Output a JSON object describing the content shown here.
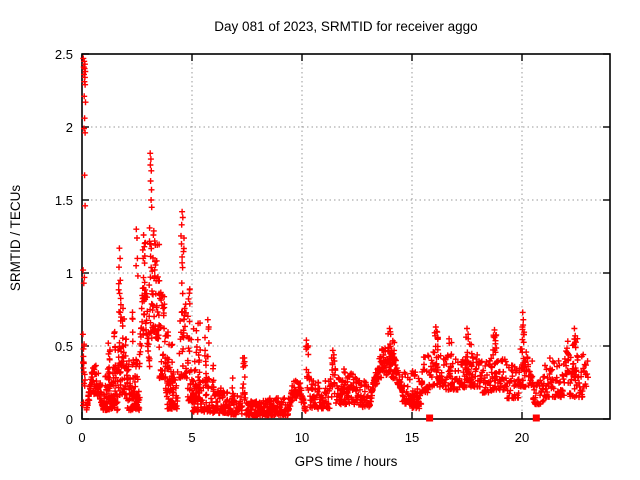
{
  "chart_data": {
    "type": "scatter",
    "title": "Day 081 of 2023, SRMTID for receiver aggo",
    "xlabel": "GPS time / hours",
    "ylabel": "SRMTID / TECUs",
    "xlim": [
      0,
      24
    ],
    "ylim": [
      0,
      2.5
    ],
    "xticks": [
      0,
      5,
      10,
      15,
      20
    ],
    "xtick_labels": [
      "0",
      "5",
      "10",
      "15",
      "20"
    ],
    "yticks": [
      0,
      0.5,
      1,
      1.5,
      2,
      2.5
    ],
    "ytick_labels": [
      "0",
      "0.5",
      "1",
      "1.5",
      "2",
      "2.5"
    ],
    "grid": "dotted",
    "legend": "none",
    "marker": "plus",
    "colors": {
      "points": "#ff0000",
      "axis": "#000000",
      "grid": "#9a9a9a",
      "background": "#ffffff"
    },
    "axis_squares_x": [
      15.8,
      20.65
    ],
    "notable_points": [
      [
        0.06,
        2.47
      ],
      [
        0.1,
        2.45
      ],
      [
        0.13,
        2.43
      ],
      [
        0.08,
        2.41
      ],
      [
        0.12,
        2.4
      ],
      [
        0.15,
        2.38
      ],
      [
        0.09,
        2.36
      ],
      [
        0.13,
        2.34
      ],
      [
        0.11,
        2.31
      ],
      [
        0.14,
        2.29
      ],
      [
        0.1,
        2.21
      ],
      [
        0.16,
        2.17
      ],
      [
        0.12,
        2.06
      ],
      [
        0.09,
        1.99
      ],
      [
        0.14,
        1.96
      ],
      [
        0.12,
        1.67
      ],
      [
        0.14,
        1.46
      ],
      [
        0.05,
        1.02
      ],
      [
        0.11,
        0.97
      ],
      [
        0.08,
        0.93
      ],
      [
        0.04,
        0.58
      ],
      [
        0.07,
        0.48
      ],
      [
        0.05,
        0.39
      ],
      [
        1.7,
        1.17
      ],
      [
        1.73,
        1.1
      ],
      [
        1.68,
        1.04
      ],
      [
        1.74,
        0.95
      ],
      [
        1.71,
        0.86
      ],
      [
        2.47,
        1.3
      ],
      [
        2.5,
        1.24
      ],
      [
        2.52,
        1.1
      ],
      [
        2.46,
        1.05
      ],
      [
        2.54,
        0.98
      ],
      [
        2.8,
        1.26
      ],
      [
        2.83,
        1.18
      ],
      [
        2.78,
        1.1
      ],
      [
        3.1,
        1.82
      ],
      [
        3.13,
        1.78
      ],
      [
        3.11,
        1.74
      ],
      [
        3.15,
        1.7
      ],
      [
        3.12,
        1.63
      ],
      [
        3.16,
        1.57
      ],
      [
        3.14,
        1.5
      ],
      [
        3.17,
        1.45
      ],
      [
        4.55,
        1.42
      ],
      [
        4.58,
        1.38
      ],
      [
        4.53,
        1.33
      ],
      [
        5.72,
        0.68
      ],
      [
        5.76,
        0.63
      ],
      [
        10.2,
        0.54
      ],
      [
        10.28,
        0.5
      ],
      [
        11.4,
        0.47
      ],
      [
        11.45,
        0.44
      ],
      [
        13.98,
        0.62
      ],
      [
        14.03,
        0.58
      ],
      [
        16.08,
        0.63
      ],
      [
        16.12,
        0.6
      ],
      [
        16.05,
        0.57
      ],
      [
        17.5,
        0.62
      ],
      [
        17.55,
        0.58
      ],
      [
        18.75,
        0.61
      ],
      [
        18.8,
        0.57
      ],
      [
        20.03,
        0.73
      ],
      [
        20.06,
        0.68
      ],
      [
        20.02,
        0.63
      ],
      [
        20.07,
        0.58
      ],
      [
        22.38,
        0.62
      ],
      [
        22.42,
        0.57
      ],
      [
        22.52,
        0.55
      ]
    ],
    "segment_format": [
      "shape",
      "x_start_hours",
      "x_end_hours",
      "y_min_tecus",
      "y_max_tecus",
      "count"
    ],
    "density_segments": [
      [
        "column",
        0.02,
        0.14,
        0.08,
        0.52,
        14
      ],
      [
        "hill",
        0.2,
        0.98,
        0.06,
        0.38,
        80
      ],
      [
        "band",
        0.98,
        1.12,
        0.05,
        0.18,
        14
      ],
      [
        "band",
        1.05,
        1.62,
        0.06,
        0.38,
        70
      ],
      [
        "column",
        1.18,
        1.28,
        0.2,
        0.52,
        10
      ],
      [
        "column",
        1.44,
        1.52,
        0.2,
        0.62,
        9
      ],
      [
        "band",
        1.6,
        2.02,
        0.15,
        0.55,
        40
      ],
      [
        "column",
        1.66,
        1.78,
        0.3,
        0.95,
        12
      ],
      [
        "column",
        1.82,
        1.92,
        0.3,
        0.8,
        8
      ],
      [
        "band",
        2.0,
        2.62,
        0.06,
        0.42,
        80
      ],
      [
        "column",
        2.28,
        2.36,
        0.4,
        0.75,
        6
      ],
      [
        "hill",
        2.6,
        3.08,
        0.35,
        1.05,
        45
      ],
      [
        "column",
        2.74,
        2.88,
        0.7,
        1.22,
        9
      ],
      [
        "band",
        3.05,
        3.52,
        0.55,
        1.32,
        65
      ],
      [
        "band",
        3.5,
        3.82,
        0.28,
        0.92,
        42
      ],
      [
        "band",
        3.8,
        4.18,
        0.18,
        0.6,
        36
      ],
      [
        "band",
        3.85,
        4.35,
        0.07,
        0.35,
        48
      ],
      [
        "column",
        4.5,
        4.64,
        0.55,
        1.3,
        16
      ],
      [
        "band",
        4.4,
        4.82,
        0.28,
        0.8,
        32
      ],
      [
        "band",
        4.8,
        5.38,
        0.12,
        0.68,
        52
      ],
      [
        "column",
        4.84,
        4.92,
        0.5,
        1.0,
        8
      ],
      [
        "band",
        5.0,
        5.42,
        0.05,
        0.3,
        36
      ],
      [
        "column",
        5.58,
        5.78,
        0.15,
        0.62,
        18
      ],
      [
        "band",
        5.4,
        5.98,
        0.05,
        0.3,
        34
      ],
      [
        "column",
        5.94,
        6.0,
        0.15,
        0.4,
        6
      ],
      [
        "band",
        5.95,
        6.62,
        0.04,
        0.22,
        55
      ],
      [
        "column",
        6.8,
        6.92,
        0.1,
        0.32,
        10
      ],
      [
        "band",
        6.6,
        7.28,
        0.03,
        0.16,
        50
      ],
      [
        "column",
        7.3,
        7.44,
        0.1,
        0.45,
        14
      ],
      [
        "band",
        7.45,
        8.42,
        0.025,
        0.13,
        85
      ],
      [
        "band",
        8.4,
        9.38,
        0.025,
        0.15,
        85
      ],
      [
        "hill",
        9.35,
        10.18,
        0.05,
        0.3,
        60
      ],
      [
        "column",
        10.18,
        10.26,
        0.2,
        0.52,
        8
      ],
      [
        "column",
        10.27,
        10.34,
        0.18,
        0.48,
        7
      ],
      [
        "band",
        10.35,
        11.32,
        0.07,
        0.28,
        70
      ],
      [
        "column",
        11.34,
        11.52,
        0.15,
        0.45,
        16
      ],
      [
        "band",
        11.55,
        12.48,
        0.1,
        0.32,
        65
      ],
      [
        "hill",
        11.72,
        12.1,
        0.12,
        0.36,
        16
      ],
      [
        "band",
        12.45,
        13.18,
        0.08,
        0.28,
        52
      ],
      [
        "hill",
        13.15,
        14.58,
        0.18,
        0.52,
        130
      ],
      [
        "column",
        13.9,
        14.06,
        0.35,
        0.6,
        10
      ],
      [
        "column",
        14.1,
        14.22,
        0.3,
        0.55,
        8
      ],
      [
        "band",
        14.55,
        15.48,
        0.1,
        0.34,
        60
      ],
      [
        "band",
        15.0,
        15.32,
        0.07,
        0.2,
        18
      ],
      [
        "band",
        15.42,
        15.85,
        0.18,
        0.44,
        28
      ],
      [
        "band",
        15.85,
        16.48,
        0.22,
        0.47,
        42
      ],
      [
        "column",
        16.0,
        16.18,
        0.35,
        0.6,
        12
      ],
      [
        "band",
        16.5,
        17.38,
        0.2,
        0.44,
        60
      ],
      [
        "column",
        16.68,
        16.8,
        0.3,
        0.55,
        8
      ],
      [
        "band",
        17.35,
        18.12,
        0.22,
        0.44,
        50
      ],
      [
        "column",
        17.42,
        17.62,
        0.3,
        0.58,
        14
      ],
      [
        "column",
        17.66,
        17.78,
        0.28,
        0.52,
        8
      ],
      [
        "band",
        18.1,
        18.62,
        0.18,
        0.4,
        36
      ],
      [
        "band",
        18.6,
        19.28,
        0.2,
        0.42,
        45
      ],
      [
        "column",
        18.68,
        18.88,
        0.3,
        0.58,
        14
      ],
      [
        "band",
        19.28,
        19.88,
        0.14,
        0.38,
        40
      ],
      [
        "column",
        19.98,
        20.12,
        0.35,
        0.7,
        12
      ],
      [
        "band",
        19.85,
        20.52,
        0.22,
        0.48,
        45
      ],
      [
        "band",
        20.5,
        20.98,
        0.1,
        0.3,
        32
      ],
      [
        "band",
        20.95,
        21.95,
        0.15,
        0.42,
        70
      ],
      [
        "column",
        21.95,
        22.12,
        0.28,
        0.54,
        10
      ],
      [
        "column",
        22.3,
        22.5,
        0.25,
        0.58,
        14
      ],
      [
        "band",
        22.08,
        22.78,
        0.15,
        0.45,
        50
      ],
      [
        "band",
        22.75,
        23.0,
        0.22,
        0.4,
        12
      ]
    ]
  }
}
